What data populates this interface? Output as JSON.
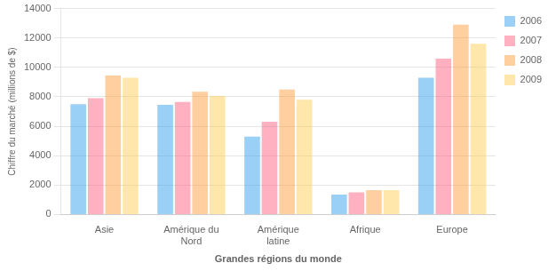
{
  "chart_data": {
    "type": "bar",
    "categories": [
      "Asie",
      "Amérique du\nNord",
      "Amérique\nlatine",
      "Afrique",
      "Europe"
    ],
    "series": [
      {
        "name": "2006",
        "values": [
          7500,
          7450,
          5300,
          1350,
          9300
        ]
      },
      {
        "name": "2007",
        "values": [
          7900,
          7650,
          6300,
          1500,
          10600
        ]
      },
      {
        "name": "2008",
        "values": [
          9450,
          8350,
          8500,
          1650,
          12900
        ]
      },
      {
        "name": "2009",
        "values": [
          9300,
          8050,
          7800,
          1650,
          11600
        ]
      }
    ],
    "xlabel": "Grandes régions du monde",
    "ylabel": "Chiffre du marché (millions de $)",
    "ylim": [
      0,
      14000
    ],
    "yticks": [
      0,
      2000,
      4000,
      6000,
      8000,
      10000,
      12000,
      14000
    ],
    "grid": "y",
    "legend": "right"
  }
}
